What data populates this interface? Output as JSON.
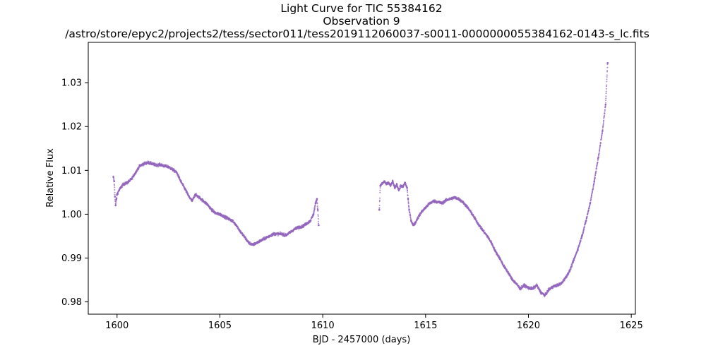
{
  "chart_data": {
    "type": "scatter",
    "title_lines": [
      "Light Curve for TIC 55384162",
      "Observation 9",
      "/astro/store/epyc2/projects2/tess/sector011/tess2019112060037-s0011-0000000055384162-0143-s_lc.fits"
    ],
    "xlabel": "BJD - 2457000 (days)",
    "ylabel": "Relative Flux",
    "xlim": [
      1598.6,
      1625.2
    ],
    "ylim": [
      0.9772,
      1.0392
    ],
    "xticks": [
      1600,
      1605,
      1610,
      1615,
      1620,
      1625
    ],
    "yticks": [
      0.98,
      0.99,
      1.0,
      1.01,
      1.02,
      1.03
    ],
    "ytick_labels": [
      "0.98",
      "0.99",
      "1.00",
      "1.01",
      "1.02",
      "1.03"
    ],
    "grid": false,
    "marker_color": "#9467bd",
    "series": [
      {
        "segments": [
          {
            "x": [
              1599.82,
              1599.86,
              1599.9,
              1599.93,
              1599.97,
              1600.0,
              1600.1,
              1600.2,
              1600.3,
              1600.5,
              1600.7,
              1600.9,
              1601.1,
              1601.3,
              1601.5,
              1601.7,
              1601.9,
              1602.1,
              1602.3,
              1602.5,
              1602.7,
              1602.9,
              1603.1,
              1603.3,
              1603.5,
              1603.65,
              1603.8,
              1604.0,
              1604.2,
              1604.4,
              1604.6,
              1604.8,
              1605.0,
              1605.2,
              1605.4,
              1605.6,
              1605.8,
              1606.0,
              1606.2,
              1606.4,
              1606.6,
              1606.8,
              1607.0,
              1607.2,
              1607.4,
              1607.6,
              1607.8,
              1608.0,
              1608.2,
              1608.4,
              1608.6,
              1608.8,
              1609.0,
              1609.2,
              1609.4,
              1609.55,
              1609.65,
              1609.72,
              1609.76,
              1609.8
            ],
            "y": [
              1.0085,
              1.0075,
              1.004,
              1.002,
              1.0035,
              1.0045,
              1.0055,
              1.0062,
              1.0068,
              1.0072,
              1.008,
              1.0095,
              1.011,
              1.0115,
              1.0118,
              1.0115,
              1.0112,
              1.0113,
              1.011,
              1.0108,
              1.0102,
              1.0095,
              1.0075,
              1.0058,
              1.004,
              1.003,
              1.0045,
              1.0038,
              1.003,
              1.0022,
              1.001,
              1.0002,
              1.0,
              0.9995,
              0.999,
              0.9985,
              0.9975,
              0.996,
              0.9948,
              0.9935,
              0.993,
              0.9935,
              0.994,
              0.9945,
              0.995,
              0.9955,
              0.9955,
              0.9955,
              0.9952,
              0.9958,
              0.9965,
              0.997,
              0.9972,
              0.9978,
              0.9985,
              1.0,
              1.0025,
              1.0035,
              1.001,
              0.9975
            ]
          },
          {
            "x": [
              1612.75,
              1612.8,
              1612.9,
              1613.0,
              1613.1,
              1613.2,
              1613.3,
              1613.4,
              1613.5,
              1613.6,
              1613.7,
              1613.8,
              1613.9,
              1614.0,
              1614.1,
              1614.15,
              1614.2,
              1614.3,
              1614.4,
              1614.5,
              1614.6,
              1614.8,
              1615.0,
              1615.2,
              1615.4,
              1615.6,
              1615.8,
              1616.0,
              1616.2,
              1616.4,
              1616.6,
              1616.8,
              1617.0,
              1617.2,
              1617.4,
              1617.6,
              1617.8,
              1618.0,
              1618.2,
              1618.4,
              1618.6,
              1618.8,
              1619.0,
              1619.2,
              1619.4,
              1619.6,
              1619.8,
              1620.0,
              1620.2,
              1620.4,
              1620.6,
              1620.8,
              1621.0,
              1621.2,
              1621.4,
              1621.6,
              1621.8,
              1622.0,
              1622.2,
              1622.4,
              1622.6,
              1622.8,
              1623.0,
              1623.2,
              1623.4,
              1623.6,
              1623.75,
              1623.85
            ],
            "y": [
              1.001,
              1.0065,
              1.007,
              1.0075,
              1.0068,
              1.0072,
              1.0065,
              1.0075,
              1.006,
              1.0068,
              1.0055,
              1.0065,
              1.0062,
              1.0072,
              1.006,
              1.0035,
              1.001,
              0.9985,
              0.9975,
              0.998,
              0.999,
              1.0005,
              1.0015,
              1.0025,
              1.003,
              1.0028,
              1.0025,
              1.0032,
              1.0035,
              1.0038,
              1.0035,
              1.0028,
              1.0018,
              1.0005,
              0.999,
              0.9975,
              0.9962,
              0.995,
              0.9935,
              0.9915,
              0.99,
              0.9882,
              0.9868,
              0.9852,
              0.9842,
              0.983,
              0.9838,
              0.9832,
              0.983,
              0.9838,
              0.9822,
              0.9815,
              0.9828,
              0.9835,
              0.9838,
              0.9842,
              0.9855,
              0.987,
              0.9895,
              0.992,
              0.995,
              0.9985,
              1.0025,
              1.0075,
              1.013,
              1.019,
              1.025,
              1.0345
            ]
          }
        ]
      }
    ]
  }
}
